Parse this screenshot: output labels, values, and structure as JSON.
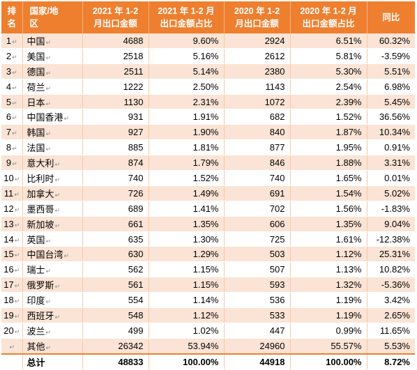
{
  "header": {
    "rank": [
      "排",
      "名"
    ],
    "country": [
      "国家/地",
      "区"
    ],
    "export_2021": [
      "2021 年 1-2",
      "月出口金额"
    ],
    "share_2021": [
      "2021 年 1-2 月",
      "出口金额占比"
    ],
    "export_2020": [
      "2020 年 1-2",
      "月出口金额"
    ],
    "share_2020": [
      "2020 年 1-2 月",
      "出口金额占比"
    ],
    "yoy": [
      "同比"
    ]
  },
  "rows": [
    {
      "rank": "1",
      "country": "中国",
      "export_2021": "4688",
      "share_2021": "9.60%",
      "export_2020": "2924",
      "share_2020": "6.51%",
      "yoy": "60.32%"
    },
    {
      "rank": "2",
      "country": "美国",
      "export_2021": "2518",
      "share_2021": "5.16%",
      "export_2020": "2612",
      "share_2020": "5.81%",
      "yoy": "-3.59%"
    },
    {
      "rank": "3",
      "country": "德国",
      "export_2021": "2511",
      "share_2021": "5.14%",
      "export_2020": "2380",
      "share_2020": "5.30%",
      "yoy": "5.51%"
    },
    {
      "rank": "4",
      "country": "荷兰",
      "export_2021": "1222",
      "share_2021": "2.50%",
      "export_2020": "1143",
      "share_2020": "2.54%",
      "yoy": "6.98%"
    },
    {
      "rank": "5",
      "country": "日本",
      "export_2021": "1130",
      "share_2021": "2.31%",
      "export_2020": "1072",
      "share_2020": "2.39%",
      "yoy": "5.45%"
    },
    {
      "rank": "6",
      "country": "中国香港",
      "export_2021": "931",
      "share_2021": "1.91%",
      "export_2020": "682",
      "share_2020": "1.52%",
      "yoy": "36.56%"
    },
    {
      "rank": "7",
      "country": "韩国",
      "export_2021": "927",
      "share_2021": "1.90%",
      "export_2020": "840",
      "share_2020": "1.87%",
      "yoy": "10.34%"
    },
    {
      "rank": "8",
      "country": "法国",
      "export_2021": "885",
      "share_2021": "1.81%",
      "export_2020": "877",
      "share_2020": "1.95%",
      "yoy": "0.91%"
    },
    {
      "rank": "9",
      "country": "意大利",
      "export_2021": "874",
      "share_2021": "1.79%",
      "export_2020": "846",
      "share_2020": "1.88%",
      "yoy": "3.31%"
    },
    {
      "rank": "10",
      "country": "比利时",
      "export_2021": "740",
      "share_2021": "1.52%",
      "export_2020": "740",
      "share_2020": "1.65%",
      "yoy": "0.01%"
    },
    {
      "rank": "11",
      "country": "加拿大",
      "export_2021": "726",
      "share_2021": "1.49%",
      "export_2020": "691",
      "share_2020": "1.54%",
      "yoy": "5.02%"
    },
    {
      "rank": "12",
      "country": "墨西哥",
      "export_2021": "689",
      "share_2021": "1.41%",
      "export_2020": "702",
      "share_2020": "1.56%",
      "yoy": "-1.83%"
    },
    {
      "rank": "13",
      "country": "新加坡",
      "export_2021": "661",
      "share_2021": "1.35%",
      "export_2020": "606",
      "share_2020": "1.35%",
      "yoy": "9.04%"
    },
    {
      "rank": "14",
      "country": "英国",
      "export_2021": "635",
      "share_2021": "1.30%",
      "export_2020": "725",
      "share_2020": "1.61%",
      "yoy": "-12.38%"
    },
    {
      "rank": "15",
      "country": "中国台湾",
      "export_2021": "630",
      "share_2021": "1.29%",
      "export_2020": "503",
      "share_2020": "1.12%",
      "yoy": "25.31%"
    },
    {
      "rank": "16",
      "country": "瑞士",
      "export_2021": "562",
      "share_2021": "1.15%",
      "export_2020": "507",
      "share_2020": "1.13%",
      "yoy": "10.82%"
    },
    {
      "rank": "17",
      "country": "俄罗斯",
      "export_2021": "561",
      "share_2021": "1.15%",
      "export_2020": "593",
      "share_2020": "1.32%",
      "yoy": "-5.36%"
    },
    {
      "rank": "18",
      "country": "印度",
      "export_2021": "554",
      "share_2021": "1.14%",
      "export_2020": "536",
      "share_2020": "1.19%",
      "yoy": "3.42%"
    },
    {
      "rank": "19",
      "country": "西班牙",
      "export_2021": "548",
      "share_2021": "1.12%",
      "export_2020": "533",
      "share_2020": "1.19%",
      "yoy": "2.65%"
    },
    {
      "rank": "20",
      "country": "波兰",
      "export_2021": "499",
      "share_2021": "1.02%",
      "export_2020": "447",
      "share_2020": "0.99%",
      "yoy": "11.65%"
    },
    {
      "rank": "",
      "country": "其他",
      "export_2021": "26342",
      "share_2021": "53.94%",
      "export_2020": "24960",
      "share_2020": "55.57%",
      "yoy": "5.53%"
    }
  ],
  "total": {
    "rank": "",
    "country": "总计",
    "export_2021": "48833",
    "share_2021": "100.00%",
    "export_2020": "44918",
    "share_2020": "100.00%",
    "yoy": "8.72%"
  },
  "cell_mark": "↵",
  "colors": {
    "header_bg": "#ee7f2f",
    "band": "#fbe4d5",
    "header_text": "#ffffff"
  }
}
